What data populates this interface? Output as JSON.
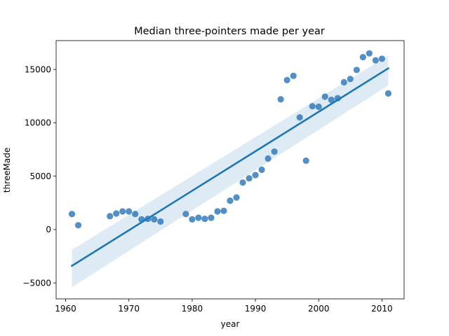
{
  "chart_data": {
    "type": "scatter",
    "title": "Median three-pointers made per year",
    "xlabel": "year",
    "ylabel": "threeMade",
    "xlim": [
      1958.5,
      2013.5
    ],
    "ylim": [
      -6500,
      17700
    ],
    "xticks": [
      1960,
      1970,
      1980,
      1990,
      2000,
      2010
    ],
    "yticks": [
      -5000,
      0,
      5000,
      10000,
      15000
    ],
    "ytick_labels": [
      "−5000",
      "0",
      "5000",
      "10000",
      "15000"
    ],
    "grid": false,
    "colors": {
      "points": "#3a80bd",
      "line": "#1f77b4",
      "band": "#1f77b4"
    },
    "series": [
      {
        "values": [
          {
            "x": 1961,
            "y": 1450
          },
          {
            "x": 1962,
            "y": 400
          },
          {
            "x": 1967,
            "y": 1250
          },
          {
            "x": 1968,
            "y": 1500
          },
          {
            "x": 1969,
            "y": 1700
          },
          {
            "x": 1970,
            "y": 1700
          },
          {
            "x": 1971,
            "y": 1450
          },
          {
            "x": 1972,
            "y": 950
          },
          {
            "x": 1973,
            "y": 1000
          },
          {
            "x": 1974,
            "y": 950
          },
          {
            "x": 1975,
            "y": 750
          },
          {
            "x": 1979,
            "y": 1450
          },
          {
            "x": 1980,
            "y": 950
          },
          {
            "x": 1981,
            "y": 1100
          },
          {
            "x": 1982,
            "y": 1000
          },
          {
            "x": 1983,
            "y": 1100
          },
          {
            "x": 1984,
            "y": 1700
          },
          {
            "x": 1985,
            "y": 1750
          },
          {
            "x": 1986,
            "y": 2700
          },
          {
            "x": 1987,
            "y": 3000
          },
          {
            "x": 1988,
            "y": 4400
          },
          {
            "x": 1989,
            "y": 4800
          },
          {
            "x": 1990,
            "y": 5100
          },
          {
            "x": 1991,
            "y": 5600
          },
          {
            "x": 1992,
            "y": 6650
          },
          {
            "x": 1993,
            "y": 7300
          },
          {
            "x": 1994,
            "y": 12200
          },
          {
            "x": 1995,
            "y": 14000
          },
          {
            "x": 1996,
            "y": 14400
          },
          {
            "x": 1997,
            "y": 10500
          },
          {
            "x": 1998,
            "y": 6450
          },
          {
            "x": 1999,
            "y": 11550
          },
          {
            "x": 2000,
            "y": 11500
          },
          {
            "x": 2001,
            "y": 12450
          },
          {
            "x": 2002,
            "y": 12150
          },
          {
            "x": 2003,
            "y": 12300
          },
          {
            "x": 2004,
            "y": 13800
          },
          {
            "x": 2005,
            "y": 14100
          },
          {
            "x": 2006,
            "y": 14950
          },
          {
            "x": 2007,
            "y": 16150
          },
          {
            "x": 2008,
            "y": 16500
          },
          {
            "x": 2009,
            "y": 15850
          },
          {
            "x": 2010,
            "y": 16000
          },
          {
            "x": 2011,
            "y": 12750
          }
        ],
        "fit": {
          "x": [
            1961,
            2011
          ],
          "y": [
            -3400,
            15100
          ],
          "ci_upper": [
            -1900,
            16300
          ],
          "ci_lower": [
            -5400,
            13500
          ]
        }
      }
    ]
  }
}
